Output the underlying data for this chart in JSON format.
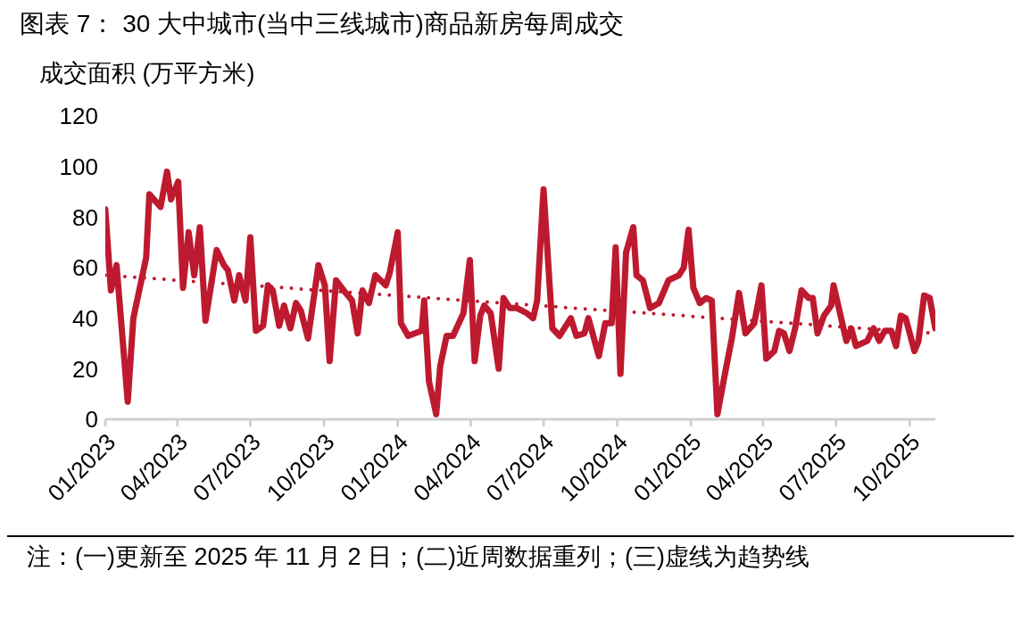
{
  "chart_data": {
    "type": "line",
    "title": "图表 7：  30 大中城市(当中三线城市)商品新房每周成交",
    "ylabel": "成交面积 (万平方米)",
    "annotations": [
      "注：(一)更新至 2025 年 11 月 2 日；(二)近周数据重列；(三)虚线为趋势线"
    ],
    "xlim": [
      "2023-01-01",
      "2025-11-02"
    ],
    "xticks": [
      {
        "value": "2023-01-01",
        "label": "01/2023"
      },
      {
        "value": "2023-04-01",
        "label": "04/2023"
      },
      {
        "value": "2023-07-01",
        "label": "07/2023"
      },
      {
        "value": "2023-10-01",
        "label": "10/2023"
      },
      {
        "value": "2024-01-01",
        "label": "01/2024"
      },
      {
        "value": "2024-04-01",
        "label": "04/2024"
      },
      {
        "value": "2024-07-01",
        "label": "07/2024"
      },
      {
        "value": "2024-10-01",
        "label": "10/2024"
      },
      {
        "value": "2025-01-01",
        "label": "01/2025"
      },
      {
        "value": "2025-04-01",
        "label": "04/2025"
      },
      {
        "value": "2025-07-01",
        "label": "07/2025"
      },
      {
        "value": "2025-10-01",
        "label": "10/2025"
      }
    ],
    "ylim": [
      0,
      120
    ],
    "yticks": [
      0,
      20,
      40,
      60,
      80,
      100,
      120
    ],
    "marker": "none",
    "series": [
      {
        "type": "line",
        "color": "#be1a2f",
        "line_style": "solid",
        "x": [
          "2023-01-01",
          "2023-01-08",
          "2023-01-15",
          "2023-01-29",
          "2023-02-05",
          "2023-02-21",
          "2023-02-25",
          "2023-03-11",
          "2023-03-19",
          "2023-03-24",
          "2023-04-02",
          "2023-04-08",
          "2023-04-15",
          "2023-04-22",
          "2023-04-29",
          "2023-05-06",
          "2023-05-20",
          "2023-05-29",
          "2023-06-03",
          "2023-06-11",
          "2023-06-17",
          "2023-06-25",
          "2023-07-01",
          "2023-07-08",
          "2023-07-17",
          "2023-07-23",
          "2023-07-29",
          "2023-08-06",
          "2023-08-12",
          "2023-08-20",
          "2023-08-27",
          "2023-09-02",
          "2023-09-11",
          "2023-09-24",
          "2023-10-02",
          "2023-10-08",
          "2023-10-16",
          "2023-10-28",
          "2023-11-05",
          "2023-11-12",
          "2023-11-18",
          "2023-11-26",
          "2023-12-04",
          "2023-12-17",
          "2023-12-22",
          "2024-01-01",
          "2024-01-05",
          "2024-01-14",
          "2024-01-31",
          "2024-02-03",
          "2024-02-09",
          "2024-02-18",
          "2024-02-23",
          "2024-03-02",
          "2024-03-10",
          "2024-03-23",
          "2024-03-31",
          "2024-04-06",
          "2024-04-13",
          "2024-04-18",
          "2024-04-26",
          "2024-05-06",
          "2024-05-12",
          "2024-05-20",
          "2024-05-29",
          "2024-06-10",
          "2024-06-18",
          "2024-06-23",
          "2024-07-01",
          "2024-07-12",
          "2024-07-21",
          "2024-08-04",
          "2024-08-11",
          "2024-08-21",
          "2024-08-26",
          "2024-09-08",
          "2024-09-16",
          "2024-09-24",
          "2024-09-29",
          "2024-10-05",
          "2024-10-12",
          "2024-10-21",
          "2024-10-25",
          "2024-11-02",
          "2024-11-11",
          "2024-11-22",
          "2024-12-04",
          "2024-12-17",
          "2024-12-23",
          "2024-12-29",
          "2025-01-04",
          "2025-01-12",
          "2025-01-20",
          "2025-01-27",
          "2025-02-03",
          "2025-02-13",
          "2025-02-21",
          "2025-03-02",
          "2025-03-10",
          "2025-03-21",
          "2025-03-30",
          "2025-04-05",
          "2025-04-15",
          "2025-04-21",
          "2025-04-27",
          "2025-05-04",
          "2025-05-11",
          "2025-05-19",
          "2025-05-28",
          "2025-06-02",
          "2025-06-08",
          "2025-06-16",
          "2025-06-25",
          "2025-06-28",
          "2025-07-14",
          "2025-07-20",
          "2025-07-26",
          "2025-08-09",
          "2025-08-17",
          "2025-08-24",
          "2025-08-31",
          "2025-09-08",
          "2025-09-14",
          "2025-09-20",
          "2025-09-26",
          "2025-10-07",
          "2025-10-12",
          "2025-10-19",
          "2025-10-26",
          "2025-11-02"
        ],
        "values": [
          83,
          51,
          61,
          7,
          40,
          64,
          89,
          84,
          98,
          87,
          94,
          52,
          74,
          57,
          76,
          39,
          67,
          61,
          59,
          47,
          57,
          47,
          72,
          35,
          37,
          53,
          51,
          37,
          45,
          36,
          46,
          43,
          32,
          61,
          53,
          23,
          55,
          50,
          47,
          34,
          51,
          46,
          57,
          53,
          58,
          74,
          38,
          33,
          35,
          47,
          15,
          2,
          21,
          33,
          33,
          42,
          63,
          23,
          41,
          45,
          42,
          20,
          48,
          44,
          44,
          42,
          40,
          47,
          91,
          36,
          33,
          40,
          33,
          34,
          40,
          25,
          38,
          38,
          68,
          18,
          66,
          76,
          57,
          55,
          44,
          46,
          55,
          57,
          60,
          75,
          52,
          46,
          48,
          47,
          2,
          19,
          32,
          50,
          34,
          38,
          53,
          24,
          27,
          35,
          34,
          27,
          36,
          51,
          48,
          48,
          34,
          41,
          45,
          53,
          31,
          36,
          29,
          31,
          36,
          31,
          35,
          35,
          29,
          41,
          40,
          27,
          31,
          49,
          48,
          36
        ]
      },
      {
        "type": "line",
        "color": "#be1a2f",
        "line_style": "dotted",
        "x": [
          "2023-01-01",
          "2025-11-02"
        ],
        "values": [
          57,
          34
        ]
      }
    ]
  }
}
